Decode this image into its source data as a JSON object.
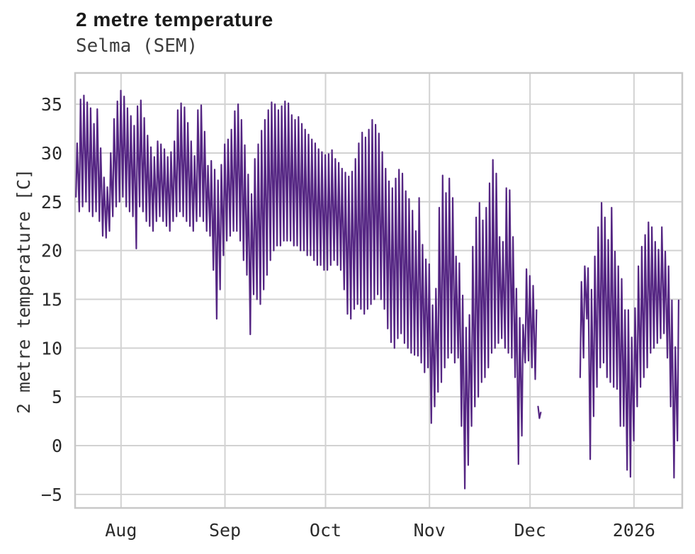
{
  "header": {
    "title": "2 metre temperature",
    "subtitle": "Selma (SEM)"
  },
  "axes": {
    "y_label": "2 metre temperature [C]",
    "y_ticks": [
      {
        "label": "35",
        "value": 35
      },
      {
        "label": "30",
        "value": 30
      },
      {
        "label": "25",
        "value": 25
      },
      {
        "label": "20",
        "value": 20
      },
      {
        "label": "15",
        "value": 15
      },
      {
        "label": "10",
        "value": 10
      },
      {
        "label": "5",
        "value": 5
      },
      {
        "label": "0",
        "value": 0
      },
      {
        "label": "−5",
        "value": -5
      }
    ],
    "x_ticks": [
      {
        "label": "Aug",
        "day": 13.7
      },
      {
        "label": "Sep",
        "day": 44.7
      },
      {
        "label": "Oct",
        "day": 74.7
      },
      {
        "label": "Nov",
        "day": 105.7
      },
      {
        "label": "Dec",
        "day": 135.7
      },
      {
        "label": "2026",
        "day": 166.7
      }
    ]
  },
  "colors": {
    "line": "#552683",
    "grid": "#d2d2d2",
    "frame": "#c8c8c8",
    "tick_text": "#2b2b2b",
    "title_text": "#1a1a1a",
    "subtitle_text": "#3d3d3d"
  },
  "chart_data": {
    "type": "line",
    "title": "2 metre temperature",
    "subtitle": "Selma (SEM)",
    "ylabel": "2 metre temperature [C]",
    "ylim": [
      -6.4,
      38.2
    ],
    "xlim_days": [
      0,
      181.1
    ],
    "x_unit": "days since plot left edge (approx 2025-07-18); month ticks mark the 1st of each month",
    "grid": true,
    "legend": false,
    "line_color": "#552683",
    "min_time_frac": 0.25,
    "max_time_frac": 0.62,
    "segments": [
      {
        "name": "jul18-dec2",
        "start_day": 0,
        "daily_min_max": [
          [
            25.5,
            31
          ],
          [
            24,
            35.5
          ],
          [
            24.5,
            35.9
          ],
          [
            25,
            35.2
          ],
          [
            24,
            34.6
          ],
          [
            23.5,
            33
          ],
          [
            24,
            34.5
          ],
          [
            23,
            30.5
          ],
          [
            21.5,
            27.5
          ],
          [
            21.3,
            26.5
          ],
          [
            22,
            30
          ],
          [
            23.5,
            33.5
          ],
          [
            24.5,
            35.3
          ],
          [
            25,
            36.4
          ],
          [
            25.5,
            35.8
          ],
          [
            24.5,
            34.6
          ],
          [
            24,
            33.8
          ],
          [
            23.5,
            32.8
          ],
          [
            20.2,
            34.8
          ],
          [
            24.5,
            35.4
          ],
          [
            24,
            33.6
          ],
          [
            23,
            31.8
          ],
          [
            22.5,
            30.6
          ],
          [
            22,
            29.6
          ],
          [
            23,
            31.2
          ],
          [
            23.5,
            30.9
          ],
          [
            23,
            30.4
          ],
          [
            22.5,
            29.6
          ],
          [
            22,
            30.1
          ],
          [
            23,
            31.2
          ],
          [
            23.5,
            34.4
          ],
          [
            24,
            35.1
          ],
          [
            23.5,
            34.7
          ],
          [
            23,
            33.1
          ],
          [
            22.5,
            31.2
          ],
          [
            22,
            29.7
          ],
          [
            23,
            34.4
          ],
          [
            23.5,
            34.9
          ],
          [
            23,
            32.2
          ],
          [
            22,
            28.7
          ],
          [
            21.5,
            29.2
          ],
          [
            18,
            28.3
          ],
          [
            13,
            27.2
          ],
          [
            16,
            28.8
          ],
          [
            19.5,
            30.9
          ],
          [
            21,
            31.4
          ],
          [
            21.5,
            32.4
          ],
          [
            22,
            34.3
          ],
          [
            22,
            35
          ],
          [
            21,
            33.4
          ],
          [
            19,
            30.8
          ],
          [
            17.5,
            27.8
          ],
          [
            11.4,
            25.8
          ],
          [
            15.5,
            29.4
          ],
          [
            15,
            30.9
          ],
          [
            14.5,
            32.3
          ],
          [
            16,
            33.4
          ],
          [
            17.5,
            34.4
          ],
          [
            19,
            35.2
          ],
          [
            20,
            35
          ],
          [
            20.5,
            34.4
          ],
          [
            20.5,
            34.8
          ],
          [
            21,
            35.3
          ],
          [
            21,
            35.1
          ],
          [
            21,
            33.9
          ],
          [
            20.5,
            33.4
          ],
          [
            20.5,
            33.7
          ],
          [
            20,
            33
          ],
          [
            20,
            32.4
          ],
          [
            19.5,
            31.9
          ],
          [
            19.5,
            31.4
          ],
          [
            19,
            31
          ],
          [
            18.5,
            30.4
          ],
          [
            18.5,
            30.1
          ],
          [
            18,
            29.8
          ],
          [
            18,
            29.9
          ],
          [
            18.5,
            30.3
          ],
          [
            19,
            29.4
          ],
          [
            18.5,
            29
          ],
          [
            18,
            28.4
          ],
          [
            16,
            28
          ],
          [
            13.5,
            27.6
          ],
          [
            13,
            28.1
          ],
          [
            14,
            29.4
          ],
          [
            14.5,
            31
          ],
          [
            14,
            32.1
          ],
          [
            13.5,
            31.6
          ],
          [
            14,
            32.4
          ],
          [
            14.5,
            33.4
          ],
          [
            15,
            32.9
          ],
          [
            15.5,
            32
          ],
          [
            15,
            30.1
          ],
          [
            14,
            28.4
          ],
          [
            12,
            27.1
          ],
          [
            10.6,
            26.4
          ],
          [
            10,
            27.4
          ],
          [
            11,
            28.3
          ],
          [
            11.5,
            27.9
          ],
          [
            10.5,
            26.1
          ],
          [
            10,
            25.3
          ],
          [
            9.5,
            24.1
          ],
          [
            9.3,
            22
          ],
          [
            9.2,
            25.4
          ],
          [
            8.5,
            20.6
          ],
          [
            7.5,
            19.1
          ],
          [
            8,
            18.6
          ],
          [
            2.3,
            14.4
          ],
          [
            4,
            16.1
          ],
          [
            5.5,
            24.4
          ],
          [
            6.5,
            27.7
          ],
          [
            8,
            25.9
          ],
          [
            9,
            27.4
          ],
          [
            9.5,
            25.4
          ],
          [
            8.5,
            19.4
          ],
          [
            9,
            18.7
          ],
          [
            2,
            15.4
          ],
          [
            -4.4,
            12.1
          ],
          [
            -2,
            13.4
          ],
          [
            2,
            20.4
          ],
          [
            4,
            23.4
          ],
          [
            5,
            24.9
          ],
          [
            6.5,
            23.1
          ],
          [
            7,
            24.4
          ],
          [
            8,
            26.9
          ],
          [
            9.5,
            29.3
          ],
          [
            10,
            27.9
          ],
          [
            10.5,
            21.4
          ],
          [
            11,
            20.9
          ],
          [
            10,
            26.4
          ],
          [
            9.5,
            26.2
          ],
          [
            9,
            21.4
          ],
          [
            7,
            16.1
          ],
          [
            -1.9,
            13.1
          ],
          [
            1,
            12.4
          ],
          [
            8.5,
            18.1
          ],
          [
            8.7,
            17.4
          ],
          [
            8,
            16.4
          ],
          [
            6.8,
            13.9
          ]
        ]
      },
      {
        "name": "dec3-fragment",
        "points": [
          [
            138.1,
            4.0
          ],
          [
            138.5,
            2.8
          ],
          [
            138.9,
            3.4
          ]
        ]
      },
      {
        "name": "dec16-jan14",
        "start_day": 150.4,
        "daily_min_max": [
          [
            7,
            16.8
          ],
          [
            9,
            18.4
          ],
          [
            13,
            18.2
          ],
          [
            -1.4,
            16
          ],
          [
            3,
            19.4
          ],
          [
            6,
            22.4
          ],
          [
            8,
            24.9
          ],
          [
            8.5,
            23.4
          ],
          [
            7,
            21.1
          ],
          [
            6.5,
            24.4
          ],
          [
            6,
            19.9
          ],
          [
            5.8,
            18.4
          ],
          [
            2,
            17.1
          ],
          [
            2,
            13.9
          ],
          [
            -2.5,
            13.9
          ],
          [
            -3.2,
            11.1
          ],
          [
            0.5,
            14.1
          ],
          [
            4,
            18.4
          ],
          [
            6,
            20.4
          ],
          [
            7,
            21.6
          ],
          [
            8,
            22.9
          ],
          [
            9.5,
            22.4
          ],
          [
            10,
            20.9
          ],
          [
            10.5,
            20.1
          ],
          [
            11,
            22.4
          ],
          [
            11.5,
            19.9
          ],
          [
            9,
            18.4
          ],
          [
            4,
            14.9
          ],
          [
            -3.3,
            10.1
          ],
          [
            0.5,
            14.9
          ]
        ]
      }
    ]
  }
}
